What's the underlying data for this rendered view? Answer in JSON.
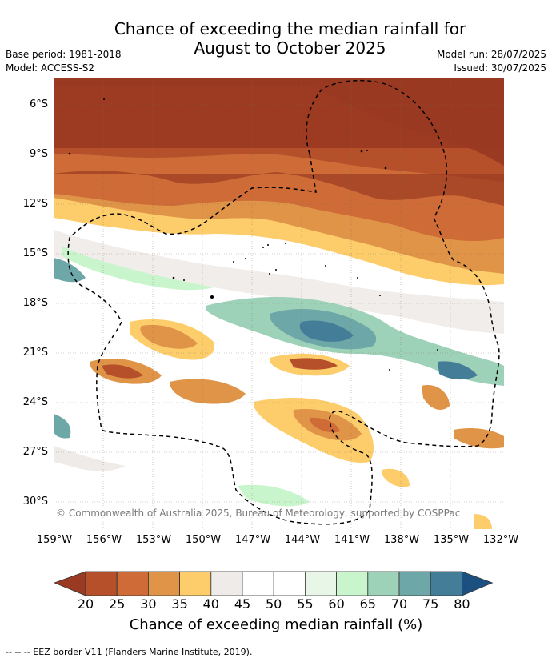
{
  "title_line1": "Chance of exceeding the median rainfall for",
  "title_line2": "August to October 2025",
  "base_period": "Base period: 1981-2018",
  "model": "Model: ACCESS-S2",
  "model_run": "Model run: 28/07/2025",
  "issued": "Issued: 30/07/2025",
  "copyright": "© Commonwealth of Australia 2025, Bureau of Meteorology, supported by COSPPac",
  "lat_labels": [
    "6°S",
    "9°S",
    "12°S",
    "15°S",
    "18°S",
    "21°S",
    "24°S",
    "27°S",
    "30°S"
  ],
  "lon_labels": [
    "159°W",
    "156°W",
    "153°W",
    "150°W",
    "147°W",
    "144°W",
    "141°W",
    "138°W",
    "135°W",
    "132°W"
  ],
  "colorbar": {
    "ticks": [
      "20",
      "25",
      "30",
      "35",
      "40",
      "45",
      "50",
      "55",
      "60",
      "65",
      "70",
      "75",
      "80"
    ],
    "colors": [
      "#9a3a22",
      "#b5502b",
      "#ce6b36",
      "#e09448",
      "#fdcd6c",
      "#efebe8",
      "#ffffff",
      "#ffffff",
      "#e8f6e8",
      "#c8f5cb",
      "#9dd1b8",
      "#6ea7a7",
      "#437d98",
      "#1c5080"
    ],
    "label": "Chance of exceeding median rainfall (%)"
  },
  "footnote": "--  --  -- EEZ border V11 (Flanders Marine Institute, 2019)."
}
